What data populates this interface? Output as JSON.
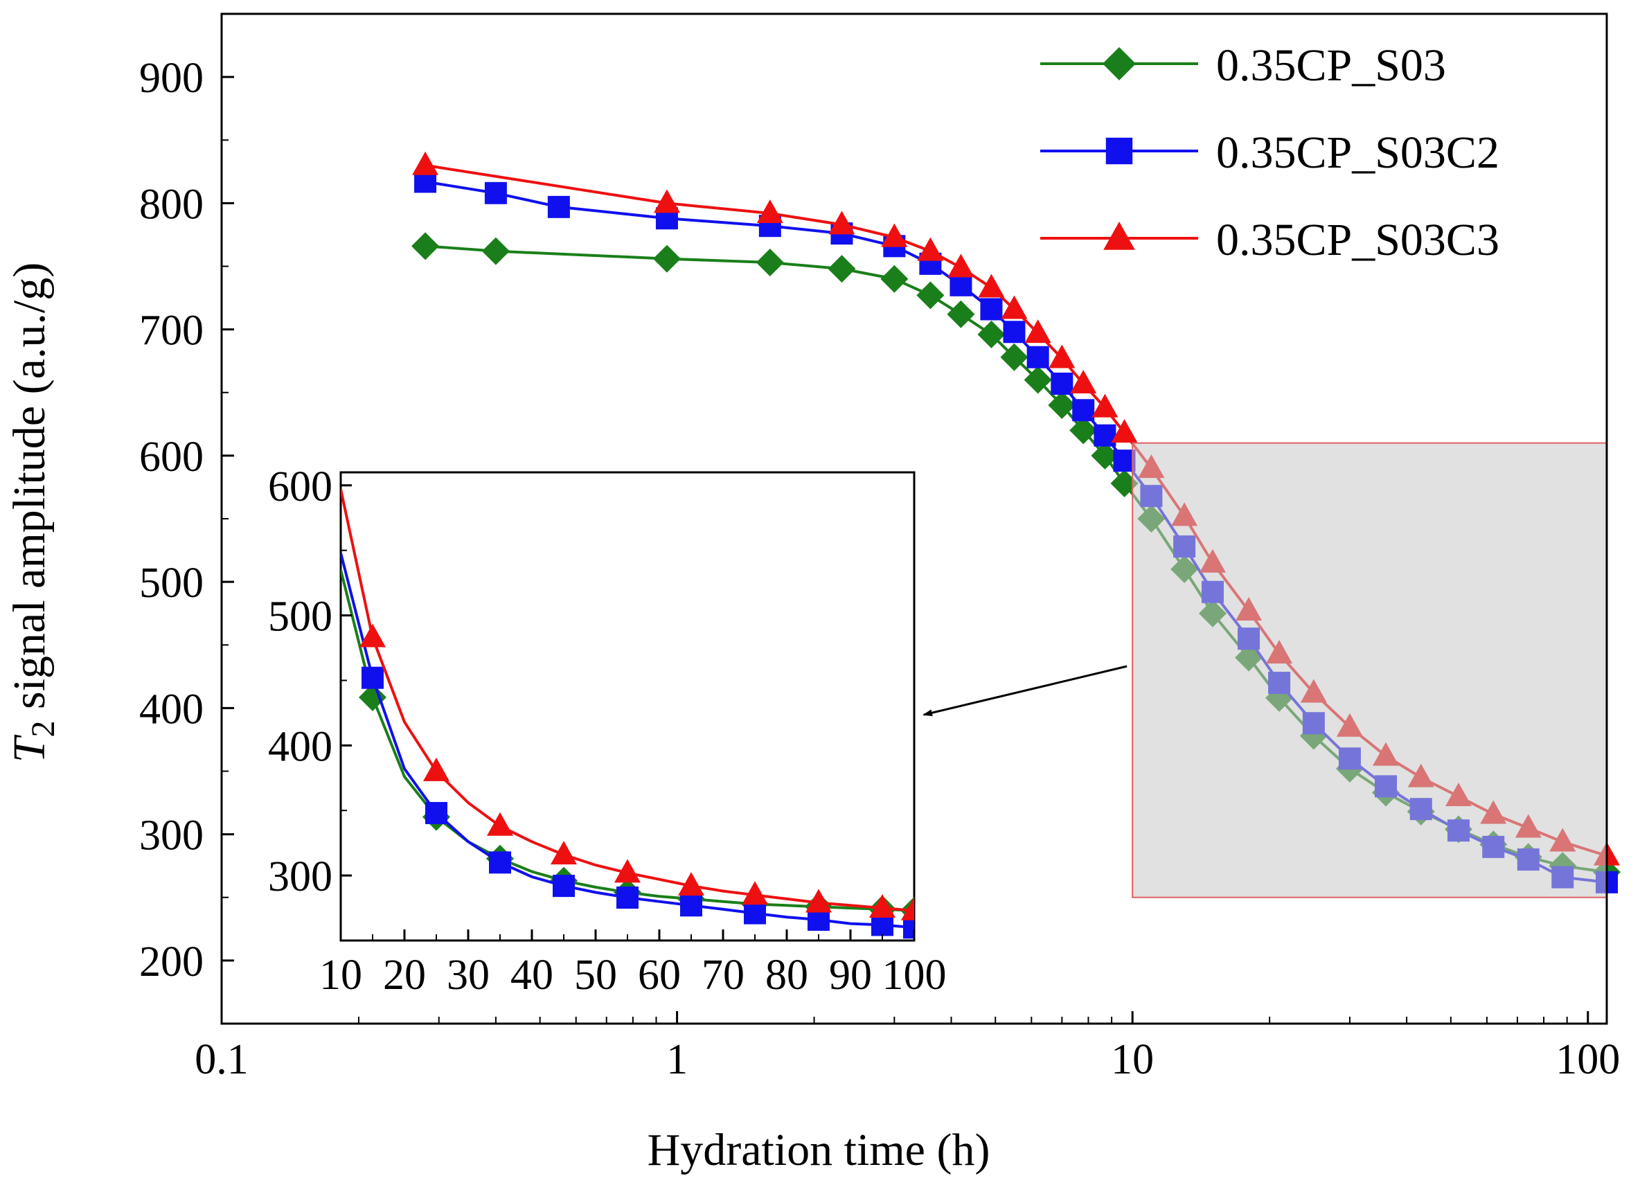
{
  "chart_data": {
    "type": "line",
    "xlabel": "Hydration time (h)",
    "ylabel_symbol": "T",
    "ylabel_subscript": "2",
    "ylabel_rest": " signal amplitude (a.u./g)",
    "x_scale": "log",
    "xlim": [
      0.1,
      110
    ],
    "ylim": [
      150,
      950
    ],
    "x_ticks": [
      0.1,
      1,
      10,
      100
    ],
    "x_tick_labels": [
      "0.1",
      "1",
      "10",
      "100"
    ],
    "y_ticks": [
      200,
      300,
      400,
      500,
      600,
      700,
      800,
      900
    ],
    "y_tick_labels": [
      "200",
      "300",
      "400",
      "500",
      "600",
      "700",
      "800",
      "900"
    ],
    "legend_position": "top-right",
    "series": [
      {
        "name": "0.35CP_S03",
        "color": "#1a7f1a",
        "marker": "diamond",
        "x": [
          0.28,
          0.4,
          0.95,
          1.6,
          2.3,
          3.0,
          3.6,
          4.2,
          4.9,
          5.5,
          6.2,
          7.0,
          7.8,
          8.7,
          9.6,
          11,
          13,
          15,
          18,
          21,
          25,
          30,
          36,
          43,
          52,
          62,
          74,
          88,
          110
        ],
        "y": [
          766,
          762,
          756,
          753,
          748,
          740,
          727,
          712,
          696,
          678,
          660,
          640,
          620,
          600,
          578,
          550,
          510,
          475,
          440,
          408,
          378,
          352,
          333,
          318,
          304,
          292,
          282,
          275,
          270
        ]
      },
      {
        "name": "0.35CP_S03C2",
        "color": "#1010ee",
        "marker": "square",
        "x": [
          0.28,
          0.4,
          0.55,
          0.95,
          1.6,
          2.3,
          3.0,
          3.6,
          4.2,
          4.9,
          5.5,
          6.2,
          7.0,
          7.8,
          8.7,
          9.6,
          11,
          13,
          15,
          18,
          21,
          25,
          30,
          36,
          43,
          52,
          62,
          74,
          88,
          110
        ],
        "y": [
          817,
          808,
          797,
          788,
          782,
          776,
          766,
          752,
          735,
          716,
          698,
          678,
          657,
          636,
          616,
          596,
          568,
          528,
          492,
          455,
          420,
          388,
          360,
          338,
          320,
          303,
          290,
          280,
          266,
          262
        ]
      },
      {
        "name": "0.35CP_S03C3",
        "color": "#ee1010",
        "marker": "triangle",
        "x": [
          0.28,
          0.95,
          1.6,
          2.3,
          3.0,
          3.6,
          4.2,
          4.9,
          5.5,
          6.2,
          7.0,
          7.8,
          8.7,
          9.6,
          11,
          13,
          15,
          18,
          21,
          25,
          30,
          36,
          43,
          52,
          62,
          74,
          88,
          110
        ],
        "y": [
          830,
          800,
          792,
          783,
          773,
          762,
          749,
          733,
          716,
          697,
          677,
          657,
          638,
          618,
          590,
          552,
          515,
          477,
          443,
          412,
          385,
          362,
          345,
          330,
          316,
          305,
          294,
          283
        ]
      }
    ],
    "inset": {
      "xlim": [
        10,
        100
      ],
      "ylim": [
        250,
        610
      ],
      "x_ticks": [
        10,
        20,
        30,
        40,
        50,
        60,
        70,
        80,
        90,
        100
      ],
      "x_tick_labels": [
        "10",
        "20",
        "30",
        "40",
        "50",
        "60",
        "70",
        "80",
        "90",
        "100"
      ],
      "y_ticks": [
        300,
        400,
        500,
        600
      ],
      "y_tick_labels": [
        "300",
        "400",
        "500",
        "600"
      ],
      "series": [
        {
          "name": "0.35CP_S03",
          "x": [
            10,
            15,
            20,
            25,
            30,
            35,
            40,
            45,
            50,
            55,
            60,
            65,
            70,
            75,
            80,
            85,
            90,
            95,
            100
          ],
          "y": [
            535,
            437,
            376,
            345,
            326,
            313,
            303,
            296,
            291,
            287,
            284,
            282,
            280,
            278,
            277,
            276,
            275,
            274,
            273
          ]
        },
        {
          "name": "0.35CP_S03C2",
          "x": [
            10,
            15,
            20,
            25,
            30,
            35,
            40,
            45,
            50,
            55,
            60,
            65,
            70,
            75,
            80,
            85,
            90,
            95,
            100
          ],
          "y": [
            548,
            452,
            382,
            348,
            326,
            310,
            299,
            292,
            287,
            283,
            280,
            277,
            274,
            271,
            268,
            266,
            263,
            262,
            260
          ]
        },
        {
          "name": "0.35CP_S03C3",
          "x": [
            10,
            15,
            20,
            25,
            30,
            35,
            40,
            45,
            50,
            55,
            60,
            65,
            70,
            75,
            80,
            85,
            90,
            95,
            100
          ],
          "y": [
            597,
            483,
            418,
            380,
            356,
            338,
            326,
            316,
            308,
            302,
            297,
            292,
            288,
            285,
            282,
            279,
            277,
            275,
            273
          ]
        }
      ]
    }
  }
}
